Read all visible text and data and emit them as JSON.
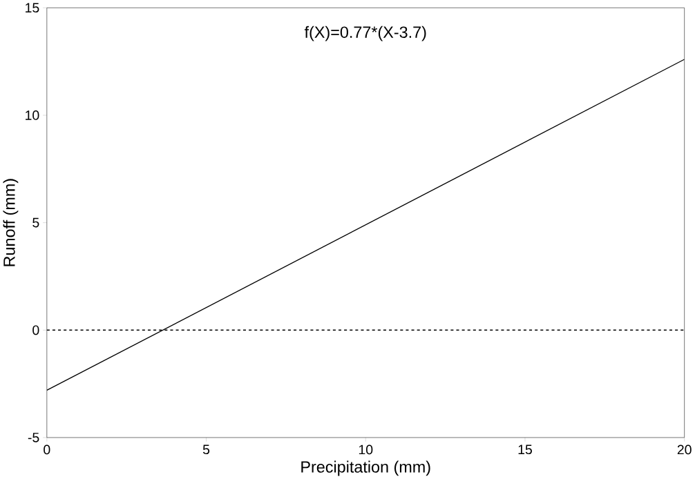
{
  "chart_data": {
    "type": "line",
    "xlabel": "Precipitation (mm)",
    "ylabel": "Runoff (mm)",
    "x": [
      0,
      20
    ],
    "series": [
      {
        "color": "#000000",
        "values": [
          -2.8,
          12.6
        ]
      }
    ],
    "xlim": [
      0,
      20
    ],
    "ylim": [
      -5,
      15
    ],
    "xticks": [
      0,
      5,
      10,
      15,
      20
    ],
    "yticks": [
      -5,
      0,
      5,
      10,
      15
    ],
    "ref_lines": [
      {
        "axis": "y",
        "value": 0,
        "color": "#000000",
        "line_style": "dashed"
      }
    ],
    "annotations": [
      "f(X)=0.77*(X-3.7)"
    ],
    "grid": false,
    "marker": "none",
    "line_style": "solid"
  }
}
